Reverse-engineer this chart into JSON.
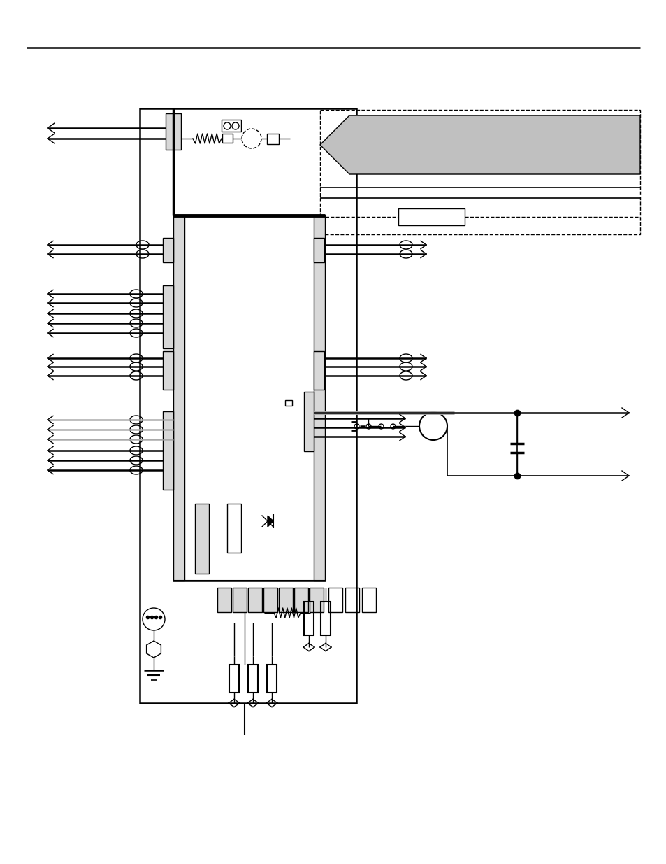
{
  "bg_color": "#ffffff",
  "lc": "#000000",
  "gc": "#aaaaaa",
  "lgc": "#d8d8d8",
  "afc": "#c0c0c0"
}
